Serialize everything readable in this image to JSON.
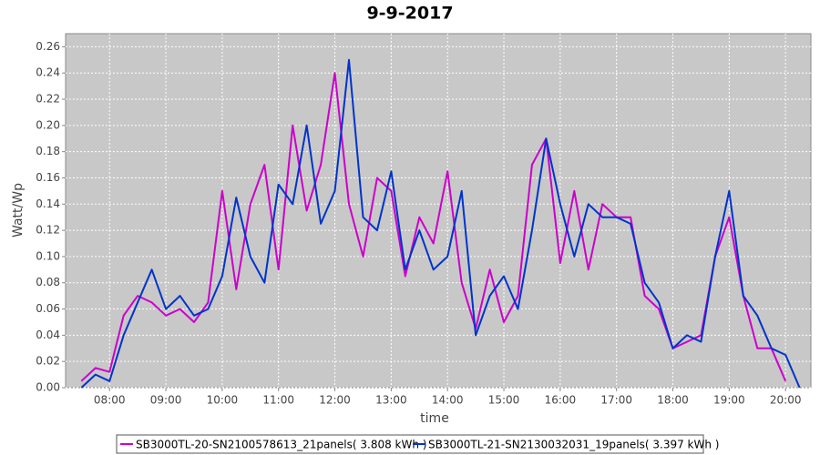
{
  "chart_data": {
    "type": "line",
    "title": "9-9-2017",
    "xlabel": "time",
    "ylabel": "Watt/Wp",
    "x": [
      7.5,
      7.75,
      8.0,
      8.25,
      8.5,
      8.75,
      9.0,
      9.25,
      9.5,
      9.75,
      10.0,
      10.25,
      10.5,
      10.75,
      11.0,
      11.25,
      11.5,
      11.75,
      12.0,
      12.25,
      12.5,
      12.75,
      13.0,
      13.25,
      13.5,
      13.75,
      14.0,
      14.25,
      14.5,
      14.75,
      15.0,
      15.25,
      15.5,
      15.75,
      16.0,
      16.25,
      16.5,
      16.75,
      17.0,
      17.25,
      17.5,
      17.75,
      18.0,
      18.25,
      18.5,
      18.75,
      19.0,
      19.25,
      19.5,
      19.75,
      20.0,
      20.25
    ],
    "series": [
      {
        "name": "SB3000TL-20-SN2100578613_21panels( 3.808 kWh )",
        "color": "#cc00cc",
        "values": [
          0.005,
          0.015,
          0.012,
          0.055,
          0.07,
          0.065,
          0.055,
          0.06,
          0.05,
          0.065,
          0.15,
          0.075,
          0.14,
          0.17,
          0.09,
          0.2,
          0.135,
          0.17,
          0.24,
          0.14,
          0.1,
          0.16,
          0.15,
          0.085,
          0.13,
          0.11,
          0.165,
          0.08,
          0.045,
          0.09,
          0.05,
          0.07,
          0.17,
          0.19,
          0.095,
          0.15,
          0.09,
          0.14,
          0.13,
          0.13,
          0.07,
          0.06,
          0.03,
          0.035,
          0.04,
          0.1,
          0.13,
          0.07,
          0.03,
          0.03,
          0.005,
          null
        ]
      },
      {
        "name": "SB3000TL-21-SN2130032031_19panels( 3.397 kWh )",
        "color": "#0033cc",
        "values": [
          0.0,
          0.01,
          0.005,
          0.04,
          0.065,
          0.09,
          0.06,
          0.07,
          0.055,
          0.06,
          0.085,
          0.145,
          0.1,
          0.08,
          0.155,
          0.14,
          0.2,
          0.125,
          0.15,
          0.25,
          0.13,
          0.12,
          0.165,
          0.09,
          0.12,
          0.09,
          0.1,
          0.15,
          0.04,
          0.07,
          0.085,
          0.06,
          0.12,
          0.19,
          0.14,
          0.1,
          0.14,
          0.13,
          0.13,
          0.125,
          0.08,
          0.065,
          0.03,
          0.04,
          0.035,
          0.1,
          0.15,
          0.07,
          0.055,
          0.03,
          0.025,
          0.0
        ]
      }
    ],
    "xlim": [
      7.22,
      20.45
    ],
    "ylim": [
      0,
      0.27
    ],
    "xticks": [
      {
        "value": 8,
        "label": "08:00"
      },
      {
        "value": 9,
        "label": "09:00"
      },
      {
        "value": 10,
        "label": "10:00"
      },
      {
        "value": 11,
        "label": "11:00"
      },
      {
        "value": 12,
        "label": "12:00"
      },
      {
        "value": 13,
        "label": "13:00"
      },
      {
        "value": 14,
        "label": "14:00"
      },
      {
        "value": 15,
        "label": "15:00"
      },
      {
        "value": 16,
        "label": "16:00"
      },
      {
        "value": 17,
        "label": "17:00"
      },
      {
        "value": 18,
        "label": "18:00"
      },
      {
        "value": 19,
        "label": "19:00"
      },
      {
        "value": 20,
        "label": "20:00"
      }
    ],
    "yticks": [
      {
        "value": 0,
        "label": "0.00"
      },
      {
        "value": 0.02,
        "label": "0.02"
      },
      {
        "value": 0.04,
        "label": "0.04"
      },
      {
        "value": 0.06,
        "label": "0.06"
      },
      {
        "value": 0.08,
        "label": "0.08"
      },
      {
        "value": 0.1,
        "label": "0.10"
      },
      {
        "value": 0.12,
        "label": "0.12"
      },
      {
        "value": 0.14,
        "label": "0.14"
      },
      {
        "value": 0.16,
        "label": "0.16"
      },
      {
        "value": 0.18,
        "label": "0.18"
      },
      {
        "value": 0.2,
        "label": "0.20"
      },
      {
        "value": 0.22,
        "label": "0.22"
      },
      {
        "value": 0.24,
        "label": "0.24"
      },
      {
        "value": 0.26,
        "label": "0.26"
      }
    ],
    "grid": true
  }
}
